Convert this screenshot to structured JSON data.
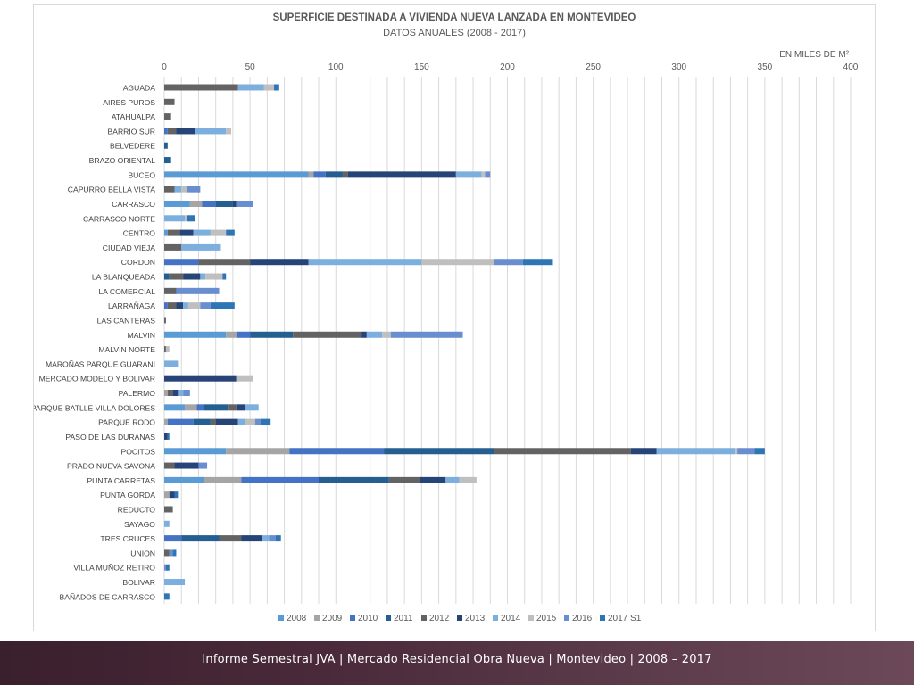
{
  "chart_data": {
    "type": "bar",
    "orientation": "horizontal",
    "stacked": true,
    "title": "SUPERFICIE DESTINADA A VIVIENDA NUEVA LANZADA EN MONTEVIDEO",
    "subtitle": "DATOS ANUALES (2008 - 2017)",
    "unit_label": "EN MILES DE M²",
    "xlim": [
      0,
      400
    ],
    "xticks": [
      0,
      50,
      100,
      150,
      200,
      250,
      300,
      350,
      400
    ],
    "grid": true,
    "legend_position": "bottom",
    "categories": [
      "AGUADA",
      "AIRES PUROS",
      "ATAHUALPA",
      "BARRIO SUR",
      "BELVEDERE",
      "BRAZO ORIENTAL",
      "BUCEO",
      "CAPURRO BELLA VISTA",
      "CARRASCO",
      "CARRASCO NORTE",
      "CENTRO",
      "CIUDAD VIEJA",
      "CORDON",
      "LA BLANQUEADA",
      "LA COMERCIAL",
      "LARRAÑAGA",
      "LAS CANTERAS",
      "MALVIN",
      "MALVIN NORTE",
      "MAROÑAS PARQUE GUARANI",
      "MERCADO MODELO Y BOLIVAR",
      "PALERMO",
      "PARQUE BATLLE VILLA DOLORES",
      "PARQUE RODO",
      "PASO DE LAS DURANAS",
      "POCITOS",
      "PRADO NUEVA SAVONA",
      "PUNTA CARRETAS",
      "PUNTA GORDA",
      "REDUCTO",
      "SAYAGO",
      "TRES CRUCES",
      "UNION",
      "VILLA MUÑOZ RETIRO",
      "BOLIVAR",
      "BAÑADOS DE CARRASCO"
    ],
    "series": [
      {
        "name": "2008",
        "color": "#5b9bd5",
        "values": [
          0,
          0,
          0,
          0,
          0,
          0,
          84,
          0,
          15,
          0,
          2,
          0,
          0,
          0,
          0,
          0,
          0,
          36,
          0,
          0,
          0,
          0,
          12,
          0,
          0,
          36,
          0,
          23,
          0,
          0,
          0,
          0,
          0,
          0,
          0,
          0
        ]
      },
      {
        "name": "2009",
        "color": "#a5a5a5",
        "values": [
          0,
          0,
          0,
          0,
          0,
          0,
          3,
          0,
          7,
          0,
          0,
          0,
          0,
          0,
          0,
          0,
          0,
          6,
          0,
          0,
          0,
          2,
          7,
          2,
          0,
          37,
          0,
          22,
          3,
          0,
          0,
          0,
          0,
          0,
          0,
          0
        ]
      },
      {
        "name": "2010",
        "color": "#4472c4",
        "values": [
          0,
          0,
          0,
          2,
          0,
          0,
          7,
          0,
          8,
          0,
          0,
          0,
          20,
          0,
          0,
          2,
          0,
          8,
          0,
          0,
          0,
          0,
          4,
          15,
          0,
          55,
          0,
          45,
          0,
          0,
          0,
          10,
          0,
          0,
          0,
          0
        ]
      },
      {
        "name": "2011",
        "color": "#255e91",
        "values": [
          0,
          0,
          0,
          0,
          2,
          4,
          10,
          0,
          10,
          0,
          0,
          0,
          0,
          3,
          0,
          0,
          0,
          25,
          0,
          0,
          0,
          0,
          14,
          10,
          0,
          64,
          0,
          41,
          0,
          0,
          0,
          22,
          0,
          0,
          0,
          0
        ]
      },
      {
        "name": "2012",
        "color": "#636363",
        "values": [
          43,
          6,
          4,
          5,
          0,
          0,
          3,
          6,
          0,
          0,
          7,
          10,
          30,
          8,
          7,
          5,
          1,
          40,
          1,
          0,
          0,
          3,
          5,
          3,
          0,
          80,
          6,
          18,
          0,
          5,
          0,
          13,
          3,
          0,
          0,
          0
        ]
      },
      {
        "name": "2013",
        "color": "#264478",
        "values": [
          0,
          0,
          0,
          11,
          0,
          0,
          63,
          0,
          2,
          0,
          8,
          0,
          34,
          10,
          0,
          4,
          0,
          3,
          0,
          0,
          42,
          3,
          5,
          13,
          2,
          15,
          14,
          15,
          3,
          0,
          0,
          12,
          0,
          0,
          0,
          0
        ]
      },
      {
        "name": "2014",
        "color": "#7cafdd",
        "values": [
          15,
          0,
          0,
          18,
          0,
          0,
          15,
          4,
          0,
          12,
          10,
          23,
          66,
          3,
          0,
          3,
          0,
          9,
          0,
          8,
          0,
          3,
          8,
          4,
          0,
          46,
          0,
          8,
          0,
          0,
          3,
          4,
          0,
          0,
          12,
          0
        ]
      },
      {
        "name": "2015",
        "color": "#bfbfbf",
        "values": [
          6,
          0,
          0,
          3,
          0,
          0,
          2,
          3,
          0,
          1,
          9,
          0,
          42,
          10,
          0,
          7,
          0,
          5,
          2,
          0,
          10,
          0,
          0,
          6,
          0,
          1,
          0,
          10,
          0,
          0,
          0,
          0,
          0,
          0,
          0,
          0
        ]
      },
      {
        "name": "2016",
        "color": "#698ed0",
        "values": [
          0,
          0,
          0,
          0,
          0,
          0,
          3,
          8,
          10,
          0,
          0,
          0,
          17,
          0,
          25,
          6,
          0,
          42,
          0,
          0,
          0,
          4,
          0,
          3,
          0,
          10,
          5,
          0,
          0,
          0,
          0,
          4,
          2,
          1,
          0,
          0
        ]
      },
      {
        "name": "2017 S1",
        "color": "#2e75b6",
        "values": [
          3,
          0,
          0,
          0,
          0,
          0,
          0,
          0,
          0,
          5,
          5,
          0,
          17,
          2,
          0,
          14,
          0,
          0,
          0,
          0,
          0,
          0,
          0,
          6,
          1,
          6,
          0,
          0,
          2,
          0,
          0,
          3,
          2,
          2,
          0,
          3
        ]
      }
    ]
  },
  "footer": {
    "text": "Informe Semestral JVA | Mercado Residencial Obra Nueva | Montevideo | 2008 – 2017"
  }
}
